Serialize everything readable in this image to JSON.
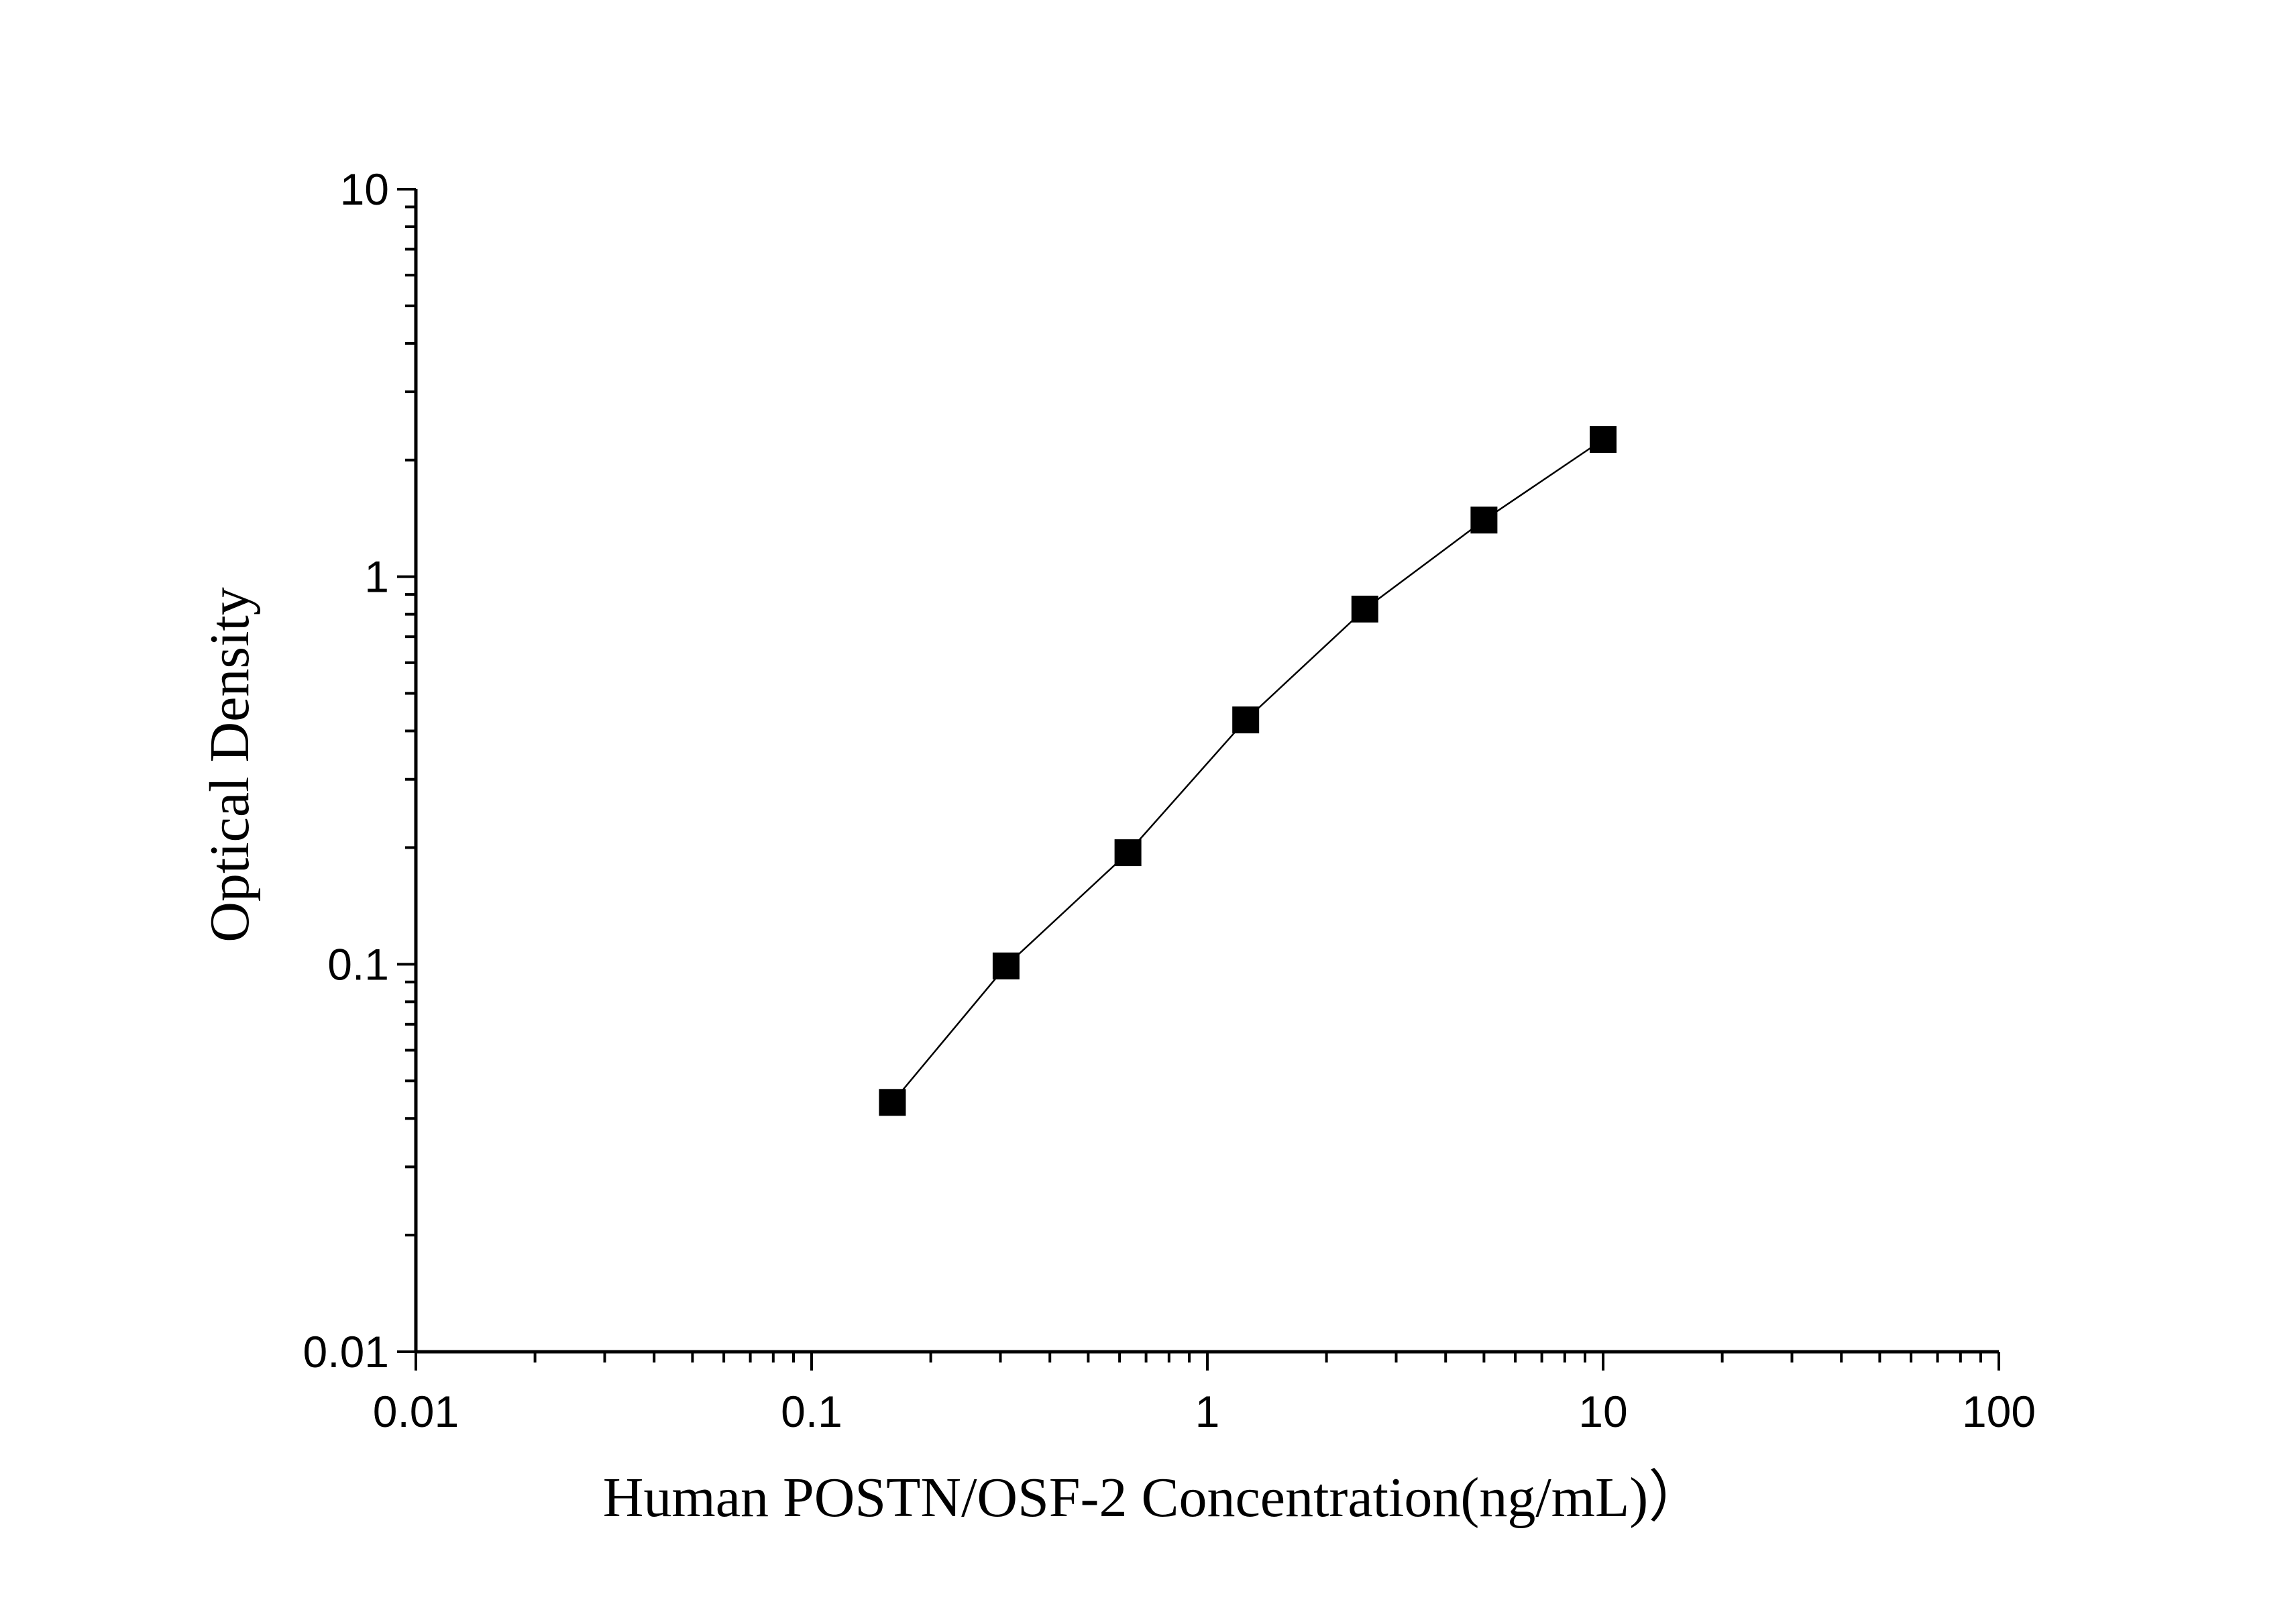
{
  "chart_data": {
    "type": "line",
    "title": "",
    "xlabel": "Human POSTN/OSF-2 Concentration(ng/mL)）",
    "ylabel": "Optical Density",
    "x_scale": "log",
    "y_scale": "log",
    "xlim": [
      0.01,
      100
    ],
    "ylim": [
      0.01,
      10
    ],
    "x_ticks": [
      "0.01",
      "0.1",
      "1",
      "10",
      "100"
    ],
    "y_ticks": [
      "0.01",
      "0.1",
      "1",
      "10"
    ],
    "grid": false,
    "legend": "none",
    "marker": "square",
    "color": "#000000",
    "series": [
      {
        "x": [
          0.16,
          0.31,
          0.63,
          1.25,
          2.5,
          5,
          10
        ],
        "y": [
          0.044,
          0.099,
          0.194,
          0.427,
          0.825,
          1.4,
          2.26
        ]
      }
    ]
  }
}
